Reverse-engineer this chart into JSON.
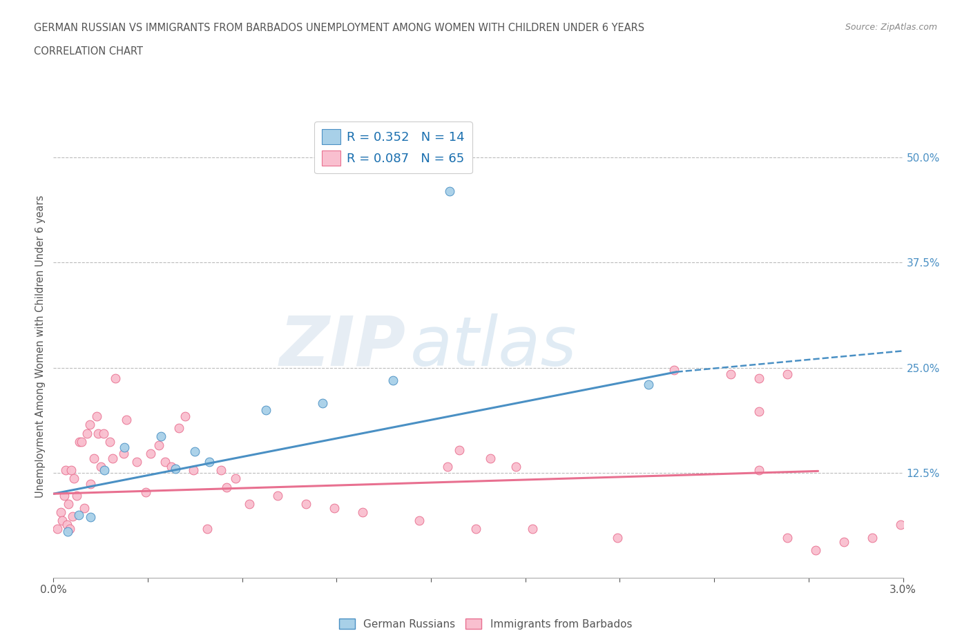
{
  "title_line1": "GERMAN RUSSIAN VS IMMIGRANTS FROM BARBADOS UNEMPLOYMENT AMONG WOMEN WITH CHILDREN UNDER 6 YEARS",
  "title_line2": "CORRELATION CHART",
  "source": "Source: ZipAtlas.com",
  "ylabel": "Unemployment Among Women with Children Under 6 years",
  "xlim": [
    0.0,
    0.03
  ],
  "ylim": [
    0.0,
    0.55
  ],
  "color_blue": "#A8D0E8",
  "color_pink": "#F9BFCF",
  "line_blue": "#4A90C4",
  "line_pink": "#E87090",
  "legend_R1": "R = 0.352",
  "legend_N1": "N = 14",
  "legend_R2": "R = 0.087",
  "legend_N2": "N = 65",
  "watermark_zip": "ZIP",
  "watermark_atlas": "atlas",
  "blue_trend_x0": 0.0,
  "blue_trend_y0": 0.1,
  "blue_trend_x1": 0.022,
  "blue_trend_y1": 0.245,
  "blue_trend_x2": 0.03,
  "blue_trend_y2": 0.27,
  "pink_trend_x0": 0.0,
  "pink_trend_y0": 0.1,
  "pink_trend_x1": 0.027,
  "pink_trend_y1": 0.127,
  "pink_trend_x2": 0.03,
  "pink_trend_y2": 0.13,
  "blue_x": [
    0.0005,
    0.0009,
    0.0013,
    0.0018,
    0.0025,
    0.0038,
    0.0043,
    0.005,
    0.0055,
    0.0075,
    0.0095,
    0.012,
    0.014,
    0.021
  ],
  "blue_y": [
    0.055,
    0.075,
    0.072,
    0.128,
    0.155,
    0.168,
    0.13,
    0.15,
    0.138,
    0.2,
    0.208,
    0.235,
    0.46,
    0.23
  ],
  "pink_x": [
    0.00015,
    0.00025,
    0.0003,
    0.00038,
    0.00042,
    0.00048,
    0.00052,
    0.00058,
    0.00062,
    0.00068,
    0.00072,
    0.00082,
    0.00092,
    0.001,
    0.00108,
    0.00118,
    0.00128,
    0.00132,
    0.00142,
    0.00152,
    0.00158,
    0.00168,
    0.00178,
    0.00198,
    0.00208,
    0.00218,
    0.00248,
    0.00258,
    0.00295,
    0.00325,
    0.00342,
    0.00372,
    0.00395,
    0.00415,
    0.00442,
    0.00465,
    0.00495,
    0.00542,
    0.00592,
    0.00612,
    0.00642,
    0.00692,
    0.00792,
    0.00892,
    0.00992,
    0.01092,
    0.01292,
    0.01492,
    0.01692,
    0.01992,
    0.02192,
    0.02392,
    0.02492,
    0.02592,
    0.02492,
    0.01392,
    0.01542,
    0.01632,
    0.01432,
    0.02492,
    0.02592,
    0.02692,
    0.02792,
    0.02892,
    0.02992
  ],
  "pink_y": [
    0.058,
    0.078,
    0.068,
    0.098,
    0.128,
    0.063,
    0.088,
    0.058,
    0.128,
    0.073,
    0.118,
    0.098,
    0.162,
    0.162,
    0.083,
    0.172,
    0.182,
    0.112,
    0.142,
    0.192,
    0.172,
    0.132,
    0.172,
    0.162,
    0.142,
    0.237,
    0.148,
    0.188,
    0.138,
    0.102,
    0.148,
    0.158,
    0.138,
    0.132,
    0.178,
    0.192,
    0.128,
    0.058,
    0.128,
    0.108,
    0.118,
    0.088,
    0.098,
    0.088,
    0.083,
    0.078,
    0.068,
    0.058,
    0.058,
    0.048,
    0.247,
    0.242,
    0.237,
    0.048,
    0.128,
    0.132,
    0.142,
    0.132,
    0.152,
    0.198,
    0.242,
    0.033,
    0.043,
    0.048,
    0.063
  ]
}
